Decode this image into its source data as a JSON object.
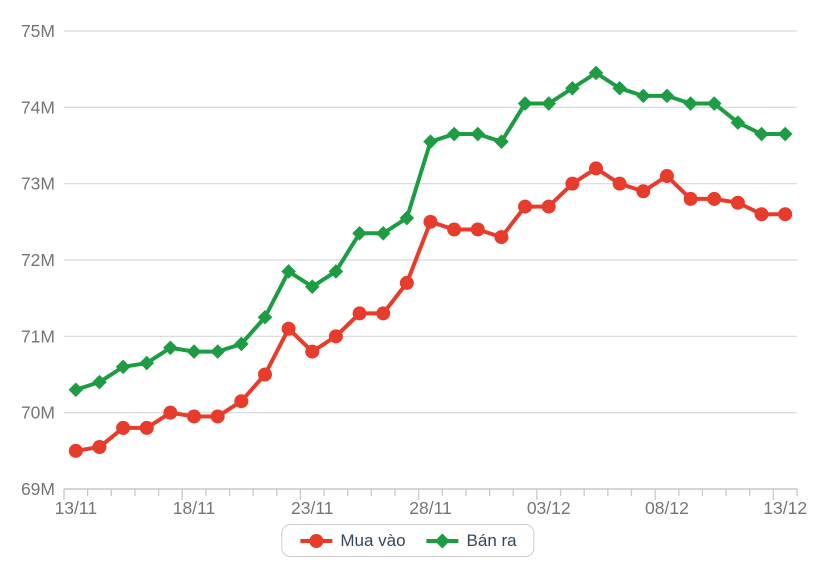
{
  "chart_data": {
    "type": "line",
    "title": "",
    "categories": [
      "13/11",
      "14/11",
      "15/11",
      "16/11",
      "17/11",
      "18/11",
      "19/11",
      "20/11",
      "21/11",
      "22/11",
      "23/11",
      "24/11",
      "25/11",
      "26/11",
      "27/11",
      "28/11",
      "29/11",
      "30/11",
      "01/12",
      "02/12",
      "03/12",
      "04/12",
      "05/12",
      "06/12",
      "07/12",
      "08/12",
      "09/12",
      "10/12",
      "11/12",
      "12/12",
      "13/12"
    ],
    "x_axis": {
      "labeled_ticks": [
        "13/11",
        "18/11",
        "23/11",
        "28/11",
        "03/12",
        "08/12",
        "13/12"
      ],
      "label_every": 5
    },
    "y_axis": {
      "tick_labels": [
        "69M",
        "70M",
        "71M",
        "72M",
        "73M",
        "74M",
        "75M"
      ],
      "min": 69,
      "max": 75,
      "unit": "M"
    },
    "ylim": [
      69,
      75
    ],
    "grid": true,
    "legend_position": "bottom",
    "series": [
      {
        "name": "Mua vào",
        "color": "#e73b2c",
        "marker": "circle",
        "values": [
          69.5,
          69.55,
          69.8,
          69.8,
          70.0,
          69.95,
          69.95,
          70.15,
          70.5,
          71.1,
          70.8,
          71.0,
          71.3,
          71.3,
          71.7,
          72.5,
          72.4,
          72.4,
          72.3,
          72.7,
          72.7,
          73.0,
          73.2,
          73.0,
          72.9,
          73.1,
          72.8,
          72.8,
          72.75,
          72.6,
          72.6
        ]
      },
      {
        "name": "Bán ra",
        "color": "#1e9c44",
        "marker": "diamond",
        "values": [
          70.3,
          70.4,
          70.6,
          70.65,
          70.85,
          70.8,
          70.8,
          70.9,
          71.25,
          71.85,
          71.65,
          71.85,
          72.35,
          72.35,
          72.55,
          73.55,
          73.65,
          73.65,
          73.55,
          74.05,
          74.05,
          74.25,
          74.45,
          74.25,
          74.15,
          74.15,
          74.05,
          74.05,
          73.8,
          73.65,
          73.65
        ]
      }
    ],
    "styles": {
      "grid_color": "#d8d8d8",
      "axis_color": "#c2c9d0",
      "axis_text_color": "#757575",
      "legend_text_color": "#33475b",
      "legend_border_color": "#cdcdcd",
      "background": "#ffffff"
    }
  }
}
